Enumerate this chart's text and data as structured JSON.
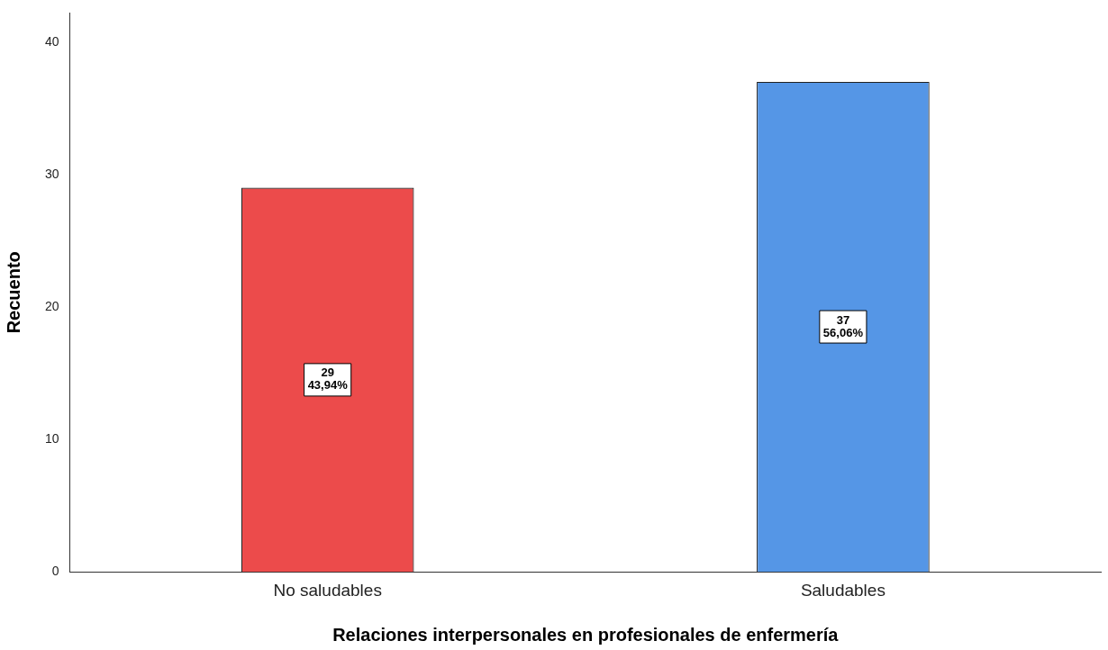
{
  "chart_data": {
    "type": "bar",
    "xlabel": "Relaciones interpersonales en profesionales de enfermería",
    "ylabel": "Recuento",
    "categories": [
      "No saludables",
      "Saludables"
    ],
    "values": [
      29,
      37
    ],
    "colors": [
      "#ec4b4b",
      "#5596e6"
    ],
    "value_labels": [
      "29\n43,94%",
      "37\n56,06%"
    ],
    "ylim": [
      0,
      42.2
    ],
    "yticks": [
      0,
      10,
      20,
      30,
      40
    ],
    "grid": false,
    "legend": false
  }
}
